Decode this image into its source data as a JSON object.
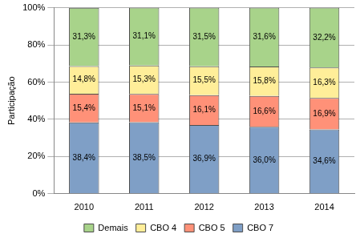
{
  "chart_data": {
    "type": "bar",
    "stacked": true,
    "data_labels": true,
    "grid": true,
    "legend": "bottom",
    "y_label": "Participação",
    "categories": [
      "2010",
      "2011",
      "2012",
      "2013",
      "2014"
    ],
    "ylim": [
      0,
      100
    ],
    "yticks": [
      {
        "value": 0,
        "label": "0%"
      },
      {
        "value": 20,
        "label": "20%"
      },
      {
        "value": 40,
        "label": "40%"
      },
      {
        "value": 60,
        "label": "60%"
      },
      {
        "value": 80,
        "label": "80%"
      },
      {
        "value": 100,
        "label": "100%"
      }
    ],
    "series": [
      {
        "name": "CBO 7",
        "color": "#7f9fc6",
        "values": [
          38.4,
          38.5,
          36.9,
          36.0,
          34.6
        ],
        "value_labels": [
          "38,4%",
          "38,5%",
          "36,9%",
          "36,0%",
          "34,6%"
        ]
      },
      {
        "name": "CBO 5",
        "color": "#ff9178",
        "values": [
          15.4,
          15.1,
          16.1,
          16.6,
          16.9
        ],
        "value_labels": [
          "15,4%",
          "15,1%",
          "16,1%",
          "16,6%",
          "16,9%"
        ]
      },
      {
        "name": "CBO 4",
        "color": "#ffee99",
        "values": [
          14.8,
          15.3,
          15.5,
          15.8,
          16.3
        ],
        "value_labels": [
          "14,8%",
          "15,3%",
          "15,5%",
          "15,8%",
          "16,3%"
        ]
      },
      {
        "name": "Demais",
        "color": "#a8d38a",
        "values": [
          31.3,
          31.1,
          31.5,
          31.6,
          32.2
        ],
        "value_labels": [
          "31,3%",
          "31,1%",
          "31,5%",
          "31,6%",
          "32,2%"
        ]
      }
    ]
  }
}
